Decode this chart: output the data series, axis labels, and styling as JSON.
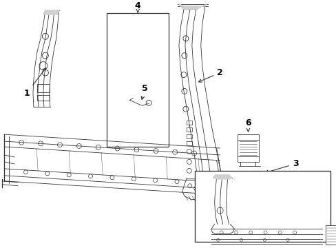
{
  "bg_color": "#ffffff",
  "line_color": "#333333",
  "label_color": "#000000",
  "fig_w": 4.89,
  "fig_h": 3.6,
  "dpi": 100
}
